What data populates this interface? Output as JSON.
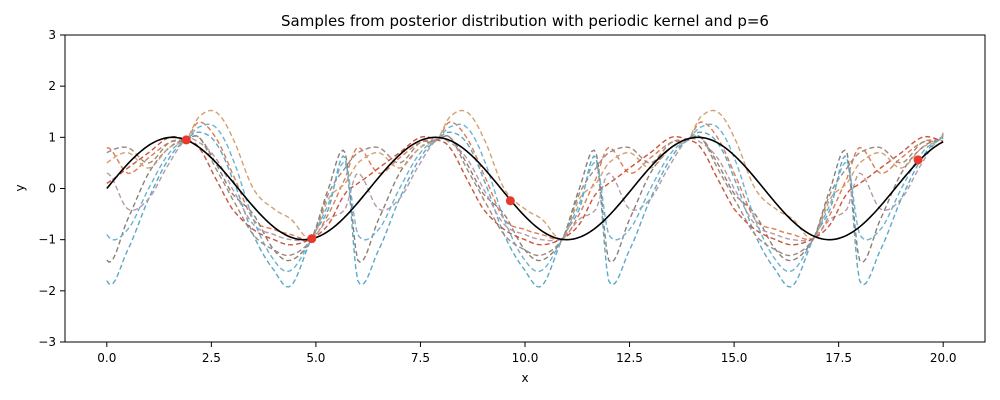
{
  "chart_data": {
    "type": "line",
    "title": "Samples from posterior distribution with periodic kernel and p=6",
    "xlabel": "x",
    "ylabel": "y",
    "xlim": [
      -1,
      21
    ],
    "ylim": [
      -3,
      3
    ],
    "xticks": [
      0.0,
      2.5,
      5.0,
      7.5,
      10.0,
      12.5,
      15.0,
      17.5,
      20.0
    ],
    "xtick_labels": [
      "0.0",
      "2.5",
      "5.0",
      "7.5",
      "10.0",
      "12.5",
      "15.0",
      "17.5",
      "20.0"
    ],
    "yticks": [
      -3,
      -2,
      -1,
      0,
      1,
      2,
      3
    ],
    "ytick_labels": [
      "−3",
      "−2",
      "−1",
      "0",
      "1",
      "2",
      "3"
    ],
    "grid": false,
    "true_function": {
      "expression": "sin(x)",
      "x_range": [
        0,
        20
      ],
      "color": "#000000"
    },
    "observations": {
      "x": [
        1.9,
        4.9,
        9.65,
        19.4
      ],
      "y": [
        0.95,
        -0.98,
        -0.24,
        0.56
      ],
      "color": "#e8392a"
    },
    "posterior_samples": {
      "period": 6,
      "period_points_x": [
        0,
        0.5,
        1.0,
        1.5,
        1.9,
        2.2,
        2.6,
        3.0,
        3.5,
        4.0,
        4.4,
        4.9,
        5.3,
        5.7
      ],
      "x_range": [
        0,
        20
      ],
      "colors": [
        "#e07b54",
        "#5ba8c8",
        "#8a7f78",
        "#d4a070",
        "#b59aa8",
        "#c8553d",
        "#6bb3d0",
        "#9c8a80"
      ],
      "samples": [
        [
          0.8,
          0.3,
          0.6,
          0.9,
          0.95,
          1.3,
          1.0,
          0.3,
          -0.6,
          -0.8,
          -0.9,
          -0.98,
          -0.5,
          0.2
        ],
        [
          -1.8,
          -1.2,
          -0.2,
          0.6,
          0.95,
          1.1,
          0.9,
          0.2,
          -0.9,
          -1.6,
          -1.9,
          -0.98,
          -0.4,
          0.6
        ],
        [
          -1.4,
          -0.6,
          0.3,
          0.8,
          0.95,
          1.0,
          0.5,
          -0.1,
          -0.5,
          -1.2,
          -1.4,
          -0.98,
          0.0,
          0.7
        ],
        [
          0.5,
          0.7,
          0.4,
          0.8,
          0.95,
          1.4,
          1.5,
          1.0,
          0.0,
          -0.4,
          -0.6,
          -0.98,
          -0.2,
          0.1
        ],
        [
          0.3,
          -0.4,
          -0.2,
          0.5,
          0.95,
          0.9,
          0.6,
          0.0,
          -0.7,
          -0.9,
          -1.0,
          -0.98,
          -0.6,
          -0.4
        ],
        [
          0.1,
          0.4,
          0.7,
          1.0,
          0.95,
          0.8,
          0.2,
          -0.4,
          -0.8,
          -1.0,
          -1.1,
          -0.98,
          -0.7,
          -0.1
        ],
        [
          -0.9,
          -0.8,
          0.0,
          0.7,
          0.95,
          1.2,
          1.2,
          0.6,
          -0.6,
          -1.4,
          -1.6,
          -0.98,
          -0.3,
          0.5
        ],
        [
          0.7,
          0.8,
          0.5,
          0.9,
          0.95,
          1.0,
          0.4,
          -0.2,
          -0.9,
          -1.2,
          -1.3,
          -0.98,
          -0.1,
          0.4
        ]
      ]
    }
  }
}
